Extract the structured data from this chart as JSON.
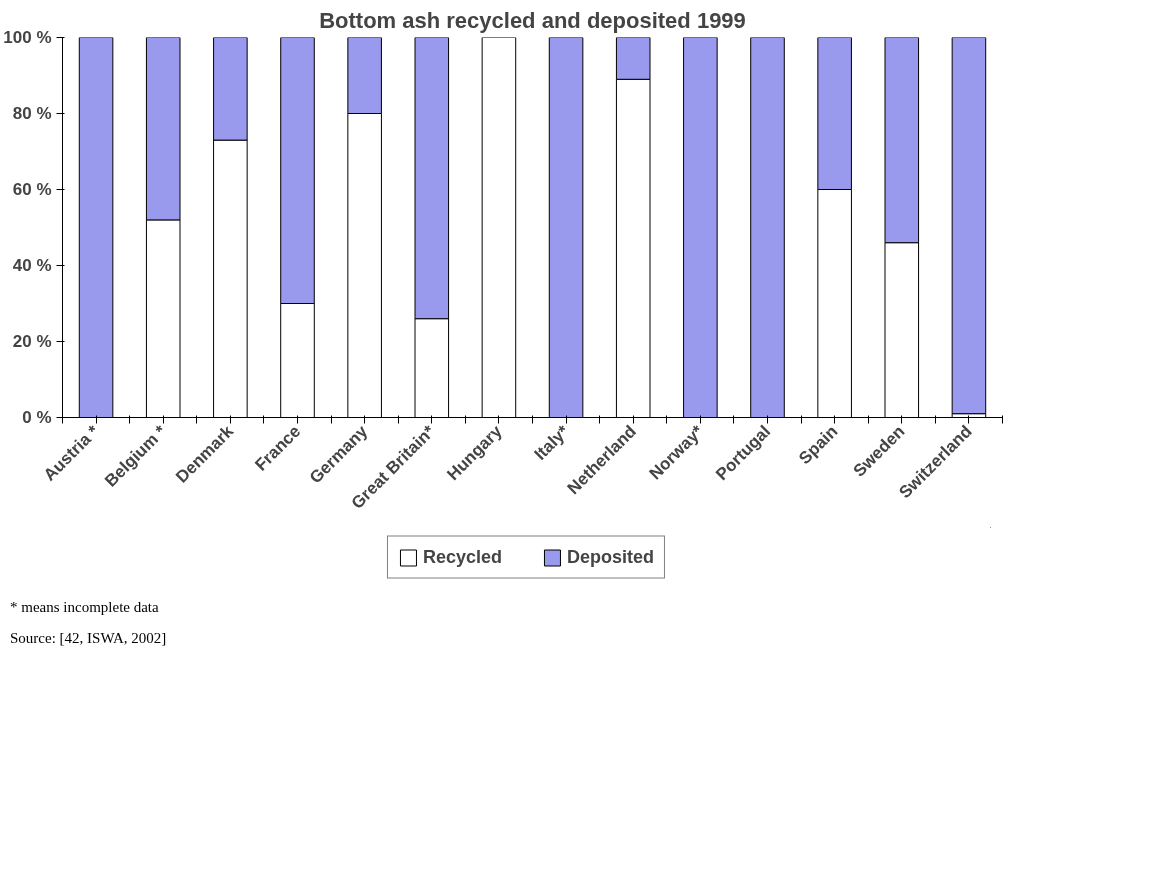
{
  "chart_data": {
    "type": "bar",
    "title": "Bottom ash recycled and deposited 1999",
    "stacked": true,
    "categories": [
      "Austria *",
      "Belgium *",
      "Denmark",
      "France",
      "Germany",
      "Great Britain*",
      "Hungary",
      "Italy*",
      "Netherland",
      "Norway*",
      "Portugal",
      "Spain",
      "Sweden",
      "Switzerland"
    ],
    "series": [
      {
        "name": "Recycled",
        "color": "#ffffff",
        "values": [
          0,
          52,
          73,
          30,
          80,
          26,
          100,
          0,
          89,
          0,
          0,
          60,
          46,
          1
        ]
      },
      {
        "name": "Deposited",
        "color": "#9999ee",
        "values": [
          100,
          48,
          27,
          70,
          20,
          74,
          0,
          100,
          11,
          100,
          100,
          40,
          54,
          99
        ]
      }
    ],
    "ylim": [
      0,
      100
    ],
    "yticks": [
      {
        "value": 0,
        "label": "0 %"
      },
      {
        "value": 20,
        "label": "20 %"
      },
      {
        "value": 40,
        "label": "40 %"
      },
      {
        "value": 60,
        "label": "60 %"
      },
      {
        "value": 80,
        "label": "80 %"
      },
      {
        "value": 100,
        "label": "100 %"
      }
    ],
    "grid": false,
    "legend": "bottom",
    "annotations": [
      "* means incomplete data",
      "Source: [42, ISWA, 2002]"
    ]
  }
}
